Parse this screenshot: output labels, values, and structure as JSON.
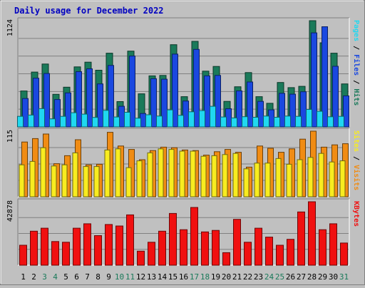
{
  "chart_data": {
    "type": "bar",
    "title": "Daily usage for December 2022",
    "categories": [
      "1",
      "2",
      "3",
      "4",
      "5",
      "6",
      "7",
      "8",
      "9",
      "10",
      "11",
      "12",
      "13",
      "14",
      "15",
      "16",
      "17",
      "18",
      "19",
      "20",
      "21",
      "22",
      "23",
      "24",
      "25",
      "26",
      "27",
      "28",
      "29",
      "30",
      "31"
    ],
    "weekend_days": [
      "3",
      "4",
      "10",
      "11",
      "17",
      "18",
      "24",
      "25",
      "31"
    ],
    "colors": {
      "title": "#0000c0",
      "hits": "#1a7a5a",
      "files": "#1a48e0",
      "pages": "#20d8f0",
      "visits": "#f08c14",
      "sites": "#f8ec20",
      "kbytes": "#f01010",
      "weekday_label": "#000000",
      "weekend_label": "#1a7a5a",
      "background": "#c0c0c0"
    },
    "panels": [
      {
        "name": "hits-files-pages",
        "ylabel_max": "1124",
        "ymax": 1124,
        "legend": [
          "Pages",
          "/",
          "Files",
          "/",
          "Hits"
        ],
        "series": [
          {
            "name": "Hits",
            "values": [
              380,
              580,
              665,
              345,
              420,
              635,
              685,
              600,
              780,
              268,
              802,
              350,
              540,
              545,
              870,
              320,
              905,
              590,
              640,
              270,
              425,
              575,
              320,
              250,
              470,
              416,
              429,
              1124,
              890,
              780,
              455
            ]
          },
          {
            "name": "Files",
            "values": [
              300,
              515,
              565,
              290,
              360,
              585,
              615,
              455,
              650,
              218,
              750,
              142,
              510,
              505,
              770,
              274,
              820,
              540,
              545,
              192,
              381,
              475,
              270,
              180,
              355,
              346,
              372,
              995,
              1060,
              641,
              328
            ]
          },
          {
            "name": "Pages",
            "values": [
              112,
              125,
              193,
              85,
              112,
              150,
              135,
              100,
              175,
              105,
              155,
              92,
              128,
              115,
              180,
              122,
              160,
              173,
              218,
              105,
              95,
              108,
              102,
              115,
              102,
              115,
              112,
              185,
              165,
              107,
              112
            ]
          }
        ]
      },
      {
        "name": "visits-sites",
        "ylabel_max": "115",
        "ymax": 115,
        "legend": [
          "Sites",
          "/",
          "Visits"
        ],
        "series": [
          {
            "name": "Visits",
            "values": [
              96,
              102,
              110,
              58,
              72,
              100,
              56,
              57,
              113,
              89,
              83,
              65,
              81,
              87,
              86,
              82,
              81,
              73,
              79,
              83,
              78,
              52,
              89,
              85,
              78,
              84,
              101,
              115,
              87,
              91,
              93
            ]
          },
          {
            "name": "Sites",
            "values": [
              56,
              62,
              86,
              54,
              56,
              77,
              53,
              53,
              82,
              84,
              51,
              63,
              77,
              84,
              83,
              80,
              80,
              71,
              72,
              74,
              76,
              49,
              59,
              59,
              67,
              57,
              65,
              69,
              76,
              61,
              63
            ]
          }
        ]
      },
      {
        "name": "kbytes",
        "ylabel_max": "42878",
        "ymax": 42878,
        "legend": [
          "KBytes"
        ],
        "series": [
          {
            "name": "KBytes",
            "values": [
              13500,
              23000,
              25000,
              16000,
              15500,
              25000,
              28000,
              20000,
              27500,
              26500,
              34000,
              9500,
              15500,
              23000,
              35000,
              24000,
              39000,
              22500,
              23500,
              8500,
              31000,
              15500,
              25000,
              19000,
              13500,
              17500,
              36000,
              42878,
              24000,
              28000,
              15000
            ]
          }
        ]
      }
    ]
  }
}
